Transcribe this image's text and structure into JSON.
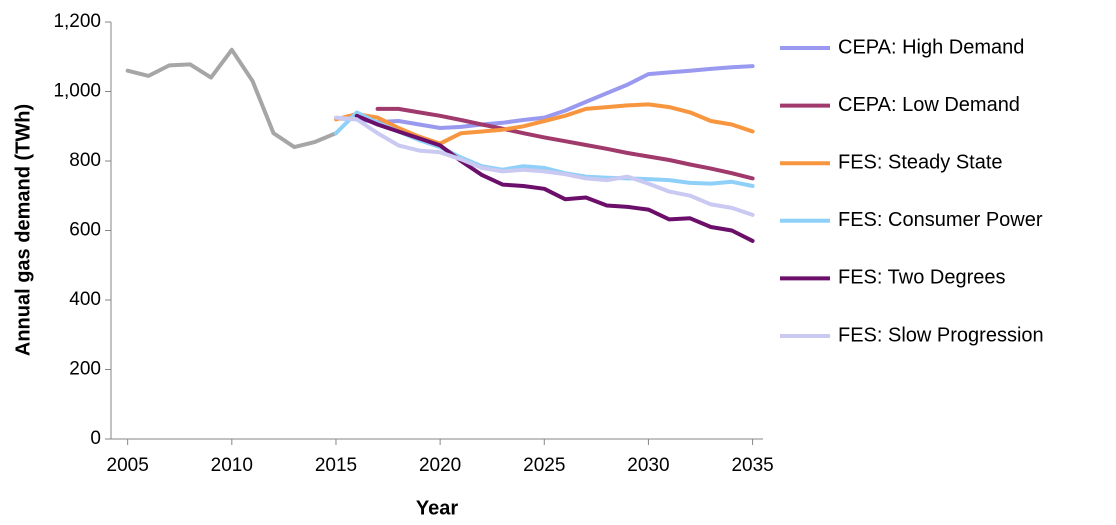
{
  "chart_data": {
    "type": "line",
    "x_label": "Year",
    "y_label": "Annual gas demand (TWh)",
    "x": [
      2005,
      2006,
      2007,
      2008,
      2009,
      2010,
      2011,
      2012,
      2013,
      2014,
      2015,
      2016,
      2017,
      2018,
      2019,
      2020,
      2021,
      2022,
      2023,
      2024,
      2025,
      2026,
      2027,
      2028,
      2029,
      2030,
      2031,
      2032,
      2033,
      2034,
      2035
    ],
    "xlim": [
      2004.2,
      2035.5
    ],
    "xticks": [
      2005,
      2010,
      2015,
      2020,
      2025,
      2030,
      2035
    ],
    "ylim": [
      0,
      1200
    ],
    "yticks": [
      0,
      200,
      400,
      600,
      800,
      {
        "value": 1000,
        "label": "1,000"
      },
      {
        "value": 1200,
        "label": "1,200"
      }
    ],
    "grid": false,
    "legend": "right",
    "series": [
      {
        "color": "#a6a6a6",
        "values": [
          1060,
          1045,
          1075,
          1078,
          1040,
          1120,
          1030,
          880,
          840,
          855,
          880,
          null,
          null,
          null,
          null,
          null,
          null,
          null,
          null,
          null,
          null,
          null,
          null,
          null,
          null,
          null,
          null,
          null,
          null,
          null,
          null
        ]
      },
      {
        "name": "CEPA: High Demand",
        "color": "#9999f0",
        "values": [
          null,
          null,
          null,
          null,
          null,
          null,
          null,
          null,
          null,
          null,
          923,
          920,
          912,
          915,
          905,
          895,
          898,
          905,
          910,
          918,
          925,
          945,
          970,
          995,
          1020,
          1050,
          1055,
          1060,
          1065,
          1070,
          1073
        ]
      },
      {
        "name": "CEPA: Low Demand",
        "color": "#a03a6c",
        "values": [
          null,
          null,
          null,
          null,
          null,
          null,
          null,
          null,
          null,
          null,
          null,
          null,
          950,
          950,
          940,
          930,
          918,
          905,
          893,
          880,
          868,
          857,
          846,
          835,
          823,
          813,
          803,
          790,
          778,
          765,
          750
        ]
      },
      {
        "name": "FES: Steady State",
        "color": "#f7963e",
        "values": [
          null,
          null,
          null,
          null,
          null,
          null,
          null,
          null,
          null,
          null,
          920,
          935,
          925,
          895,
          870,
          850,
          880,
          885,
          890,
          900,
          915,
          930,
          950,
          955,
          960,
          963,
          955,
          940,
          915,
          905,
          885
        ]
      },
      {
        "name": "FES: Consumer Power",
        "color": "#8fd0f8",
        "values": [
          null,
          null,
          null,
          null,
          null,
          null,
          null,
          null,
          null,
          null,
          880,
          940,
          910,
          885,
          860,
          840,
          810,
          785,
          775,
          785,
          780,
          765,
          755,
          752,
          750,
          748,
          745,
          737,
          735,
          740,
          728
        ]
      },
      {
        "name": "FES: Two Degrees",
        "color": "#6b0f6b",
        "values": [
          null,
          null,
          null,
          null,
          null,
          null,
          null,
          null,
          null,
          null,
          null,
          930,
          905,
          885,
          865,
          845,
          800,
          760,
          732,
          728,
          720,
          690,
          695,
          672,
          668,
          660,
          632,
          635,
          610,
          600,
          570
        ]
      },
      {
        "name": "FES: Slow Progression",
        "color": "#c9c9f2",
        "values": [
          null,
          null,
          null,
          null,
          null,
          null,
          null,
          null,
          null,
          null,
          925,
          920,
          880,
          845,
          830,
          825,
          805,
          780,
          770,
          775,
          770,
          762,
          750,
          745,
          755,
          735,
          712,
          700,
          675,
          665,
          645
        ]
      }
    ]
  }
}
